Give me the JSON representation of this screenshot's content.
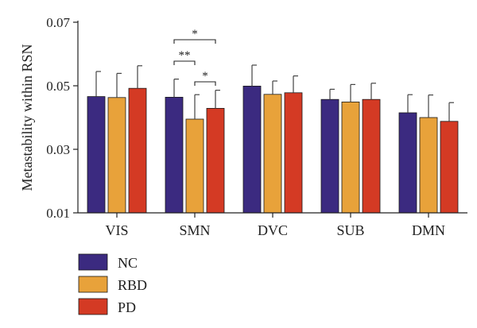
{
  "chart_data": {
    "type": "bar",
    "title": "",
    "xlabel": "",
    "ylabel": "Metastability within RSN",
    "ylim": [
      0.01,
      0.07
    ],
    "yticks": [
      "0.01",
      "0.03",
      "0.05",
      "0.07"
    ],
    "grid": false,
    "legend_position": "bottom-left",
    "categories": [
      "VIS",
      "SMN",
      "DVC",
      "SUB",
      "DMN"
    ],
    "series": [
      {
        "name": "NC",
        "color": "#3b2a80",
        "values": [
          0.0466,
          0.0464,
          0.0499,
          0.0457,
          0.0415
        ],
        "errors": [
          0.0079,
          0.0057,
          0.0066,
          0.0032,
          0.0057
        ]
      },
      {
        "name": "RBD",
        "color": "#e8a23a",
        "values": [
          0.0463,
          0.0395,
          0.0473,
          0.0449,
          0.04
        ],
        "errors": [
          0.0076,
          0.0077,
          0.0042,
          0.0055,
          0.0071
        ]
      },
      {
        "name": "PD",
        "color": "#d43a24",
        "values": [
          0.0492,
          0.0429,
          0.0478,
          0.0457,
          0.0388
        ],
        "errors": [
          0.0071,
          0.0057,
          0.0053,
          0.0051,
          0.0059
        ]
      }
    ],
    "annotations": [
      {
        "category": "SMN",
        "from": "NC",
        "to": "PD",
        "label": "*"
      },
      {
        "category": "SMN",
        "from": "NC",
        "to": "RBD",
        "label": "**"
      },
      {
        "category": "SMN",
        "from": "RBD",
        "to": "PD",
        "label": "*"
      }
    ]
  }
}
